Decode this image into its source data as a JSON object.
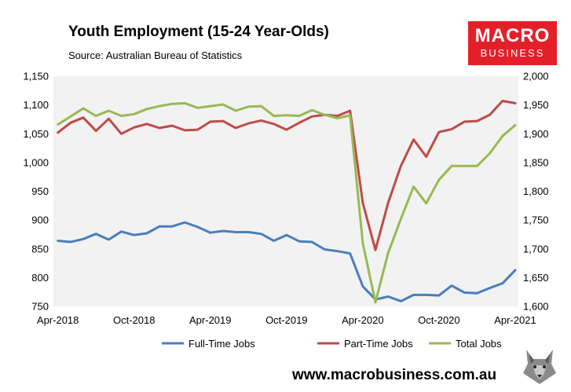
{
  "header": {
    "title": "Youth Employment (15-24 Year-Olds)",
    "subtitle": "Source: Australian Bureau of Statistics"
  },
  "logo": {
    "line1": "MACRO",
    "line2": "BUSINESS"
  },
  "footer": {
    "url": "www.macrobusiness.com.au"
  },
  "colors": {
    "full_time": "#4a7ebb",
    "part_time": "#be4b48",
    "total": "#98b954",
    "plot_bg": "#f2f2f2",
    "logo_bg": "#e3202a"
  },
  "chart_data": {
    "type": "line",
    "x_tick_labels": [
      "Apr-2018",
      "Oct-2018",
      "Apr-2019",
      "Oct-2019",
      "Apr-2020",
      "Oct-2020",
      "Apr-2021"
    ],
    "x": [
      "2018-04",
      "2018-05",
      "2018-06",
      "2018-07",
      "2018-08",
      "2018-09",
      "2018-10",
      "2018-11",
      "2018-12",
      "2019-01",
      "2019-02",
      "2019-03",
      "2019-04",
      "2019-05",
      "2019-06",
      "2019-07",
      "2019-08",
      "2019-09",
      "2019-10",
      "2019-11",
      "2019-12",
      "2020-01",
      "2020-02",
      "2020-03",
      "2020-04",
      "2020-05",
      "2020-06",
      "2020-07",
      "2020-08",
      "2020-09",
      "2020-10",
      "2020-11",
      "2020-12",
      "2021-01",
      "2021-02",
      "2021-03",
      "2021-04"
    ],
    "left_axis": {
      "min": 750,
      "max": 1150,
      "ticks": [
        "750",
        "800",
        "850",
        "900",
        "950",
        "1,000",
        "1,050",
        "1,100",
        "1,150"
      ]
    },
    "right_axis": {
      "min": 1600,
      "max": 2000,
      "ticks": [
        "1,600",
        "1,650",
        "1,700",
        "1,750",
        "1,800",
        "1,850",
        "1,900",
        "1,950",
        "2,000"
      ]
    },
    "series": [
      {
        "name": "Full-Time Jobs",
        "axis": "left",
        "color": "#4a7ebb",
        "values": [
          864,
          862,
          867,
          876,
          866,
          880,
          874,
          877,
          889,
          889,
          896,
          888,
          878,
          881,
          879,
          879,
          876,
          864,
          874,
          863,
          862,
          849,
          846,
          842,
          785,
          762,
          767,
          759,
          770,
          770,
          769,
          786,
          774,
          773,
          782,
          790,
          813
        ]
      },
      {
        "name": "Part-Time Jobs",
        "axis": "left",
        "color": "#be4b48",
        "values": [
          1052,
          1069,
          1078,
          1055,
          1076,
          1050,
          1061,
          1067,
          1060,
          1064,
          1056,
          1057,
          1071,
          1072,
          1060,
          1068,
          1073,
          1067,
          1057,
          1069,
          1080,
          1083,
          1081,
          1090,
          930,
          848,
          930,
          994,
          1040,
          1010,
          1053,
          1058,
          1071,
          1072,
          1083,
          1107,
          1103
        ]
      },
      {
        "name": "Total Jobs",
        "axis": "right",
        "color": "#98b954",
        "values": [
          1916,
          1930,
          1944,
          1931,
          1940,
          1931,
          1934,
          1943,
          1948,
          1952,
          1953,
          1945,
          1948,
          1951,
          1940,
          1947,
          1948,
          1931,
          1932,
          1931,
          1941,
          1933,
          1927,
          1932,
          1710,
          1607,
          1693,
          1752,
          1808,
          1779,
          1820,
          1844,
          1844,
          1844,
          1866,
          1896,
          1915
        ]
      }
    ]
  }
}
